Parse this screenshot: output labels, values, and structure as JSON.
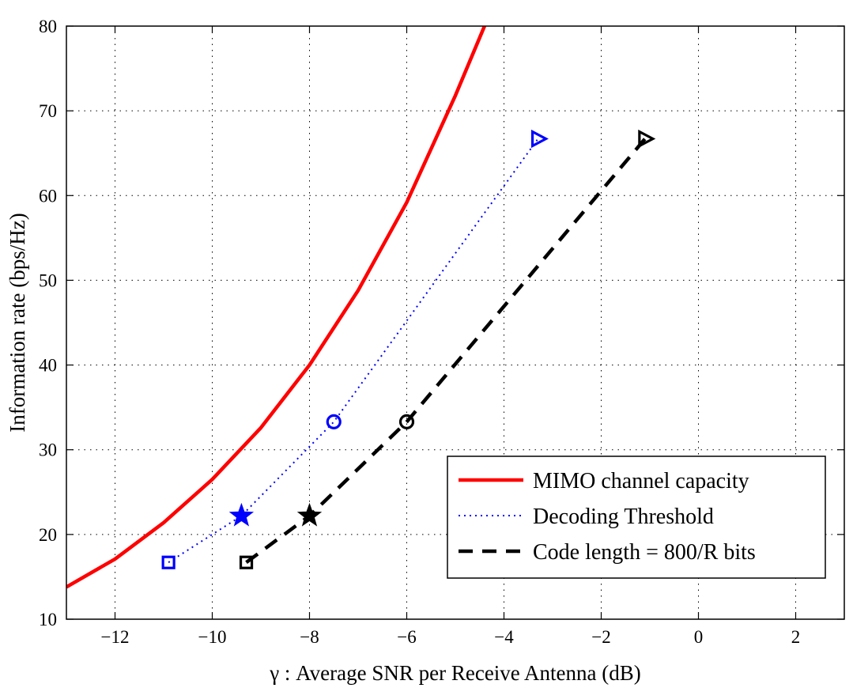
{
  "chart_data": {
    "type": "line",
    "title": "",
    "xlabel": "γ : Average SNR per Receive Antenna (dB)",
    "ylabel": "Information rate (bps/Hz)",
    "xlim": [
      -13,
      3
    ],
    "ylim": [
      10,
      80
    ],
    "xticks": [
      -12,
      -10,
      -8,
      -6,
      -4,
      -2,
      0,
      2
    ],
    "yticks": [
      10,
      20,
      30,
      40,
      50,
      60,
      70,
      80
    ],
    "xtick_labels": [
      "−12",
      "−10",
      "−8",
      "−6",
      "−4",
      "−2",
      "0",
      "2"
    ],
    "ytick_labels": [
      "10",
      "20",
      "30",
      "40",
      "50",
      "60",
      "70",
      "80"
    ],
    "grid": true,
    "legend_position": "bottom-right",
    "series": [
      {
        "name": "MIMO channel capacity",
        "color": "#ff0000",
        "style": "solid",
        "x": [
          -13,
          -12,
          -11,
          -10,
          -9,
          -8,
          -7,
          -6,
          -5,
          -4.4
        ],
        "y": [
          13.8,
          17.1,
          21.4,
          26.5,
          32.6,
          40.0,
          48.8,
          59.2,
          71.8,
          80.0
        ]
      },
      {
        "name": "Decoding Threshold",
        "color": "#0000ff",
        "style": "dotted",
        "x": [
          -10.9,
          -9.4,
          -7.5,
          -3.3
        ],
        "y": [
          16.7,
          22.2,
          33.3,
          66.7
        ],
        "markers": [
          "square",
          "star",
          "circle",
          "triangle-right"
        ]
      },
      {
        "name": "Code length = 800/R bits",
        "color": "#000000",
        "style": "dashed",
        "x": [
          -9.3,
          -8.0,
          -6.0,
          -1.1
        ],
        "y": [
          16.7,
          22.2,
          33.3,
          66.7
        ],
        "markers": [
          "square",
          "star",
          "circle",
          "triangle-right"
        ]
      }
    ]
  }
}
